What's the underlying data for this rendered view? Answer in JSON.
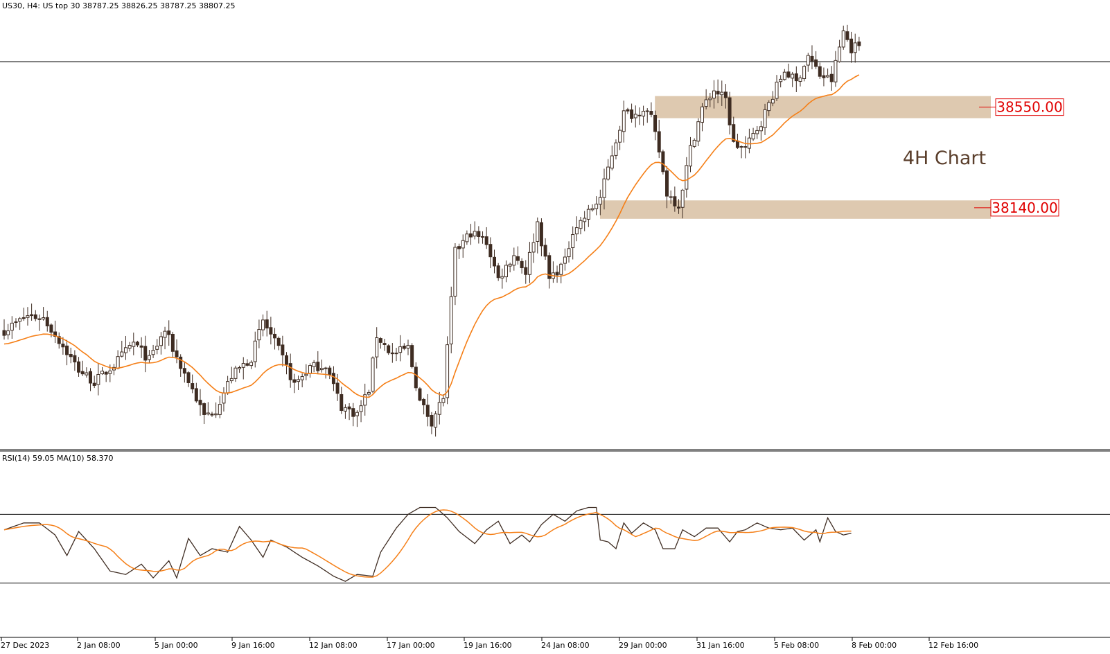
{
  "header": {
    "symbol_line": "US30, H4:  US top 30  38787.25 38826.25 38787.25 38807.25"
  },
  "annotation": {
    "label": "4H Chart"
  },
  "levels": [
    {
      "label": "38550.00",
      "value": 38550,
      "band_low": 38505,
      "band_high": 38595
    },
    {
      "label": "38140.00",
      "value": 38140,
      "band_low": 38095,
      "band_high": 38170
    }
  ],
  "rsi": {
    "header": "RSI(14) 59.05 MA(10) 58.370",
    "upper": 70,
    "lower": 30
  },
  "x_axis": {
    "labels": [
      "27 Dec 2023",
      "2 Jan 08:00",
      "5 Jan 00:00",
      "9 Jan 16:00",
      "12 Jan 08:00",
      "17 Jan 00:00",
      "19 Jan 16:00",
      "24 Jan 08:00",
      "29 Jan 00:00",
      "31 Jan 16:00",
      "5 Feb 08:00",
      "8 Feb 00:00",
      "12 Feb 16:00"
    ]
  },
  "colors": {
    "bull_body": "#ffffff",
    "bear_body": "#3e2c22",
    "candle_outline": "#3e2c22",
    "ma_line": "#f57f17",
    "rsi_line": "#3e2c22",
    "band_fill": "#d8bfa2",
    "level_text": "#e00000",
    "annotation_text": "#5a3e2b"
  },
  "chart_data": {
    "type": "candlestick",
    "symbol": "US30",
    "timeframe": "H4",
    "price_range": [
      37180,
      38930
    ],
    "current_price": 38807.25,
    "close_path": [
      [
        0,
        37640
      ],
      [
        6,
        37700
      ],
      [
        10,
        37690
      ],
      [
        14,
        37600
      ],
      [
        19,
        37480
      ],
      [
        23,
        37430
      ],
      [
        28,
        37500
      ],
      [
        33,
        37590
      ],
      [
        37,
        37520
      ],
      [
        41,
        37640
      ],
      [
        44,
        37530
      ],
      [
        48,
        37400
      ],
      [
        51,
        37290
      ],
      [
        54,
        37320
      ],
      [
        58,
        37455
      ],
      [
        63,
        37530
      ],
      [
        66,
        37680
      ],
      [
        70,
        37560
      ],
      [
        74,
        37420
      ],
      [
        78,
        37490
      ],
      [
        82,
        37500
      ],
      [
        86,
        37330
      ],
      [
        90,
        37300
      ],
      [
        93,
        37400
      ],
      [
        95,
        37620
      ],
      [
        99,
        37540
      ],
      [
        103,
        37570
      ],
      [
        106,
        37350
      ],
      [
        109,
        37270
      ],
      [
        112,
        37370
      ],
      [
        115,
        37960
      ],
      [
        119,
        38040
      ],
      [
        123,
        38000
      ],
      [
        126,
        37850
      ],
      [
        130,
        37950
      ],
      [
        133,
        37880
      ],
      [
        136,
        38080
      ],
      [
        139,
        37850
      ],
      [
        143,
        37920
      ],
      [
        145,
        38050
      ],
      [
        148,
        38100
      ],
      [
        152,
        38180
      ],
      [
        155,
        38360
      ],
      [
        158,
        38525
      ],
      [
        161,
        38520
      ],
      [
        163,
        38550
      ],
      [
        165,
        38500
      ],
      [
        167,
        38370
      ],
      [
        169,
        38200
      ],
      [
        172,
        38150
      ],
      [
        175,
        38380
      ],
      [
        178,
        38545
      ],
      [
        181,
        38620
      ],
      [
        184,
        38580
      ],
      [
        186,
        38400
      ],
      [
        189,
        38380
      ],
      [
        193,
        38490
      ],
      [
        196,
        38600
      ],
      [
        199,
        38700
      ],
      [
        202,
        38650
      ],
      [
        205,
        38760
      ],
      [
        208,
        38680
      ],
      [
        211,
        38660
      ],
      [
        214,
        38860
      ],
      [
        216,
        38790
      ],
      [
        218,
        38805
      ]
    ],
    "rsi_path": [
      [
        0,
        61
      ],
      [
        5,
        65
      ],
      [
        9,
        65
      ],
      [
        13,
        58
      ],
      [
        16,
        46
      ],
      [
        19,
        60
      ],
      [
        23,
        50
      ],
      [
        27,
        37
      ],
      [
        31,
        35
      ],
      [
        35,
        41
      ],
      [
        38,
        33
      ],
      [
        42,
        43
      ],
      [
        44,
        33
      ],
      [
        47,
        56
      ],
      [
        50,
        46
      ],
      [
        53,
        50
      ],
      [
        57,
        48
      ],
      [
        60,
        63
      ],
      [
        63,
        55
      ],
      [
        66,
        45
      ],
      [
        68,
        55
      ],
      [
        72,
        51
      ],
      [
        76,
        45
      ],
      [
        80,
        40
      ],
      [
        84,
        34
      ],
      [
        87,
        31
      ],
      [
        90,
        35
      ],
      [
        94,
        34
      ],
      [
        96,
        48
      ],
      [
        100,
        62
      ],
      [
        103,
        70
      ],
      [
        106,
        74
      ],
      [
        110,
        74
      ],
      [
        113,
        68
      ],
      [
        116,
        60
      ],
      [
        120,
        53
      ],
      [
        123,
        61
      ],
      [
        126,
        66
      ],
      [
        129,
        53
      ],
      [
        132,
        58
      ],
      [
        134,
        54
      ],
      [
        137,
        64
      ],
      [
        140,
        70
      ],
      [
        143,
        66
      ],
      [
        146,
        72
      ],
      [
        149,
        74
      ],
      [
        151,
        74
      ],
      [
        152,
        55
      ],
      [
        154,
        54
      ],
      [
        156,
        50
      ],
      [
        158,
        65
      ],
      [
        160,
        59
      ],
      [
        163,
        65
      ],
      [
        166,
        61
      ],
      [
        168,
        50
      ],
      [
        171,
        50
      ],
      [
        173,
        61
      ],
      [
        176,
        57
      ],
      [
        179,
        62
      ],
      [
        182,
        62
      ],
      [
        185,
        54
      ],
      [
        187,
        60
      ],
      [
        189,
        61
      ],
      [
        192,
        65
      ],
      [
        195,
        62
      ],
      [
        198,
        61
      ],
      [
        201,
        62
      ],
      [
        204,
        55
      ],
      [
        207,
        61
      ],
      [
        208,
        54
      ],
      [
        210,
        68
      ],
      [
        212,
        60
      ],
      [
        214,
        58
      ],
      [
        216,
        59
      ]
    ]
  }
}
